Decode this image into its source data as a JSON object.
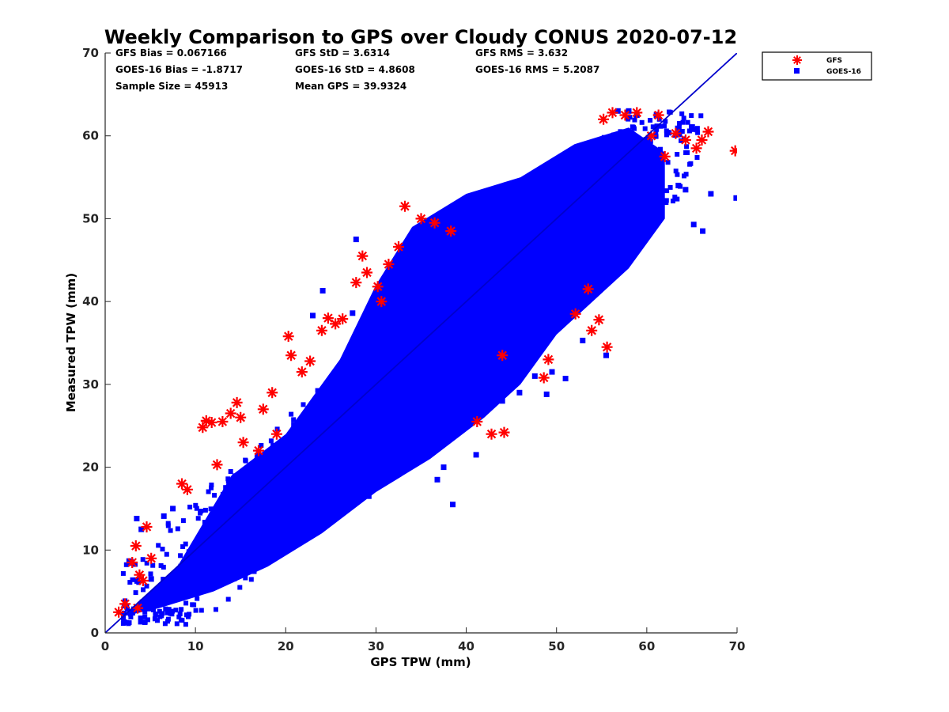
{
  "chart_data": {
    "type": "scatter",
    "title": "Weekly Comparison to GPS over Cloudy CONUS 2020-07-12",
    "xlabel": "GPS TPW (mm)",
    "ylabel": "Measured TPW (mm)",
    "xlim": [
      0,
      70
    ],
    "ylim": [
      0,
      70
    ],
    "xticks": [
      "0",
      "10",
      "20",
      "30",
      "40",
      "50",
      "60",
      "70"
    ],
    "yticks": [
      "0",
      "10",
      "20",
      "30",
      "40",
      "50",
      "60",
      "70"
    ],
    "grid": false,
    "legend_position": "outside-top-right",
    "stats": [
      [
        "GFS Bias = 0.067166",
        "GFS StD = 3.6314",
        "GFS RMS = 3.632"
      ],
      [
        "GOES-16 Bias = -1.8717",
        "GOES-16 StD = 4.8608",
        "GOES-16 RMS = 5.2087"
      ],
      [
        "Sample Size = 45913",
        "Mean GPS = 39.9324",
        ""
      ]
    ],
    "reference_line": {
      "x": [
        0,
        70
      ],
      "y": [
        0,
        70
      ],
      "color": "#0000cc"
    },
    "series": [
      {
        "name": "GFS",
        "marker": "asterisk",
        "color": "#ff0000",
        "x": [
          1.5,
          2.2,
          3.0,
          3.4,
          3.8,
          4.2,
          3.6,
          4.6,
          5.1,
          8.5,
          9.1,
          10.8,
          11.2,
          11.8,
          12.4,
          13.0,
          13.9,
          14.6,
          15.0,
          15.3,
          17.5,
          18.5,
          20.3,
          20.6,
          21.8,
          22.7,
          24.0,
          24.7,
          26.3,
          27.8,
          29.0,
          28.5,
          30.2,
          30.6,
          31.4,
          32.5,
          33.2,
          35.0,
          38.3,
          41.2,
          42.8,
          44.2,
          44.0,
          48.6,
          49.1,
          52.1,
          53.5,
          53.9,
          54.7,
          55.6,
          55.2,
          56.2,
          57.6,
          58.9,
          60.5,
          61.3,
          62.0,
          63.2,
          64.3,
          65.5,
          66.1,
          66.8,
          69.8,
          17.0,
          19.0,
          25.5,
          36.5
        ],
        "y": [
          2.5,
          3.5,
          8.5,
          10.5,
          7.0,
          6.3,
          3.0,
          12.8,
          9.0,
          18.0,
          17.3,
          24.8,
          25.6,
          25.4,
          20.3,
          25.5,
          26.5,
          27.8,
          26.0,
          23.0,
          27.0,
          29.0,
          35.8,
          33.5,
          31.5,
          32.8,
          36.5,
          38.0,
          37.9,
          42.3,
          43.5,
          45.5,
          41.8,
          40.0,
          44.5,
          46.6,
          51.5,
          50.0,
          48.5,
          25.5,
          24.0,
          24.2,
          33.5,
          30.8,
          33.0,
          38.5,
          41.5,
          36.5,
          37.8,
          34.5,
          62.0,
          62.8,
          62.5,
          62.8,
          60.0,
          62.5,
          57.5,
          60.3,
          59.5,
          58.5,
          59.5,
          60.5,
          58.2,
          22.0,
          24.0,
          37.3,
          49.5
        ]
      },
      {
        "name": "GOES-16",
        "marker": "square",
        "color": "#0000ff",
        "x": [
          3.5,
          4.0,
          6.5,
          7.5,
          9.3,
          11.0,
          13.8,
          15.5,
          17.8,
          19.8,
          19.5,
          22.0,
          24.1,
          25.1,
          27.8,
          28.5,
          29.2,
          30.1,
          31.2,
          34.9,
          36.8,
          37.5,
          38.8,
          39.3,
          41.1,
          43.2,
          44.0,
          45.9,
          47.6,
          48.9,
          49.5,
          51.0,
          52.9,
          53.4,
          54.1,
          55.5,
          56.8,
          58.0,
          58.9,
          61.0,
          62.1,
          63.5,
          64.3,
          65.2,
          66.2,
          67.1,
          69.9,
          38.5,
          41.4,
          42.3,
          27.4,
          23.0,
          12.5,
          8.4,
          5.1
        ],
        "y": [
          13.8,
          12.5,
          14.1,
          15.0,
          5.0,
          6.5,
          7.5,
          8.2,
          9.0,
          13.6,
          10.0,
          12.0,
          41.3,
          16.0,
          47.5,
          19.3,
          16.5,
          19.5,
          20.5,
          21.5,
          18.5,
          20.0,
          24.5,
          25.0,
          21.5,
          29.0,
          28.0,
          29.0,
          31.0,
          28.8,
          31.5,
          30.7,
          35.3,
          44.6,
          46.5,
          33.5,
          63.0,
          63.0,
          62.5,
          57.0,
          52.0,
          54.0,
          53.5,
          49.3,
          48.5,
          53.0,
          52.5,
          15.5,
          39.5,
          41.5,
          38.6,
          38.3,
          11.8,
          8.0,
          6.5
        ]
      }
    ]
  }
}
